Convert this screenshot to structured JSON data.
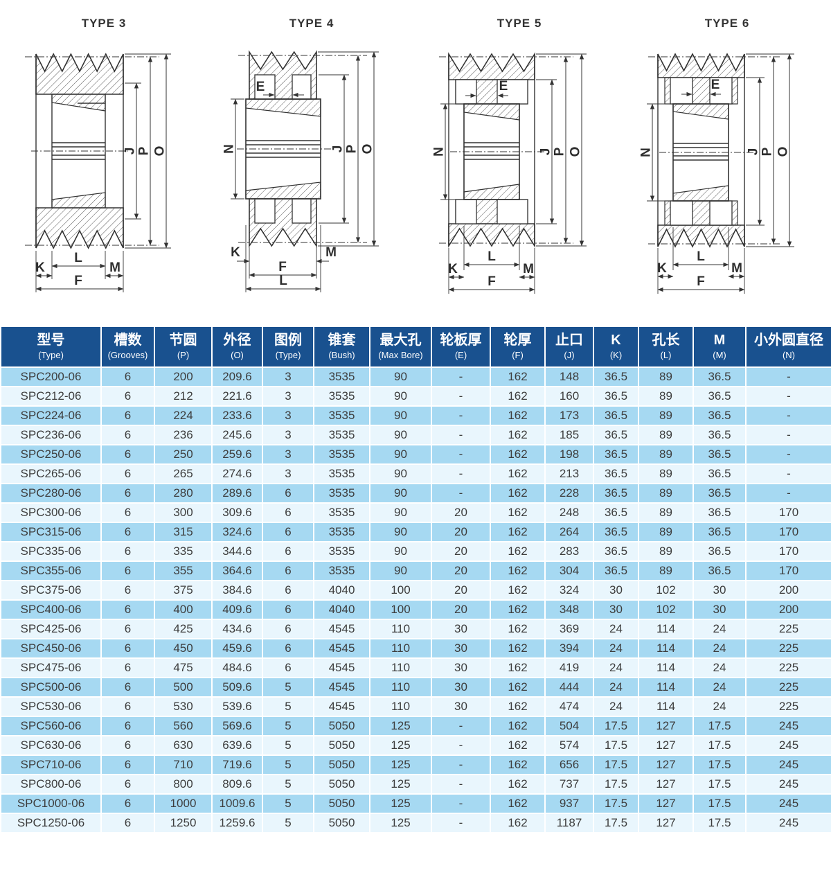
{
  "colors": {
    "header_bg": "#19518f",
    "row_blue": "#a6d9f2",
    "row_light": "#e9f6fd",
    "cell_text": "#3d3d3d",
    "drawing_line": "#333333"
  },
  "diagrams": [
    {
      "title": "TYPE 3",
      "dims": {
        "J": "J",
        "P": "P",
        "O": "O",
        "L": "L",
        "K": "K",
        "M": "M",
        "F": "F"
      }
    },
    {
      "title": "TYPE 4",
      "dims": {
        "E": "E",
        "N": "N",
        "J": "J",
        "P": "P",
        "O": "O",
        "K": "K",
        "M": "M",
        "F": "F",
        "L": "L"
      }
    },
    {
      "title": "TYPE 5",
      "dims": {
        "E": "E",
        "N": "N",
        "J": "J",
        "P": "P",
        "O": "O",
        "L": "L",
        "K": "K",
        "M": "M",
        "F": "F"
      }
    },
    {
      "title": "TYPE 6",
      "dims": {
        "E": "E",
        "N": "N",
        "J": "J",
        "P": "P",
        "O": "O",
        "L": "L",
        "K": "K",
        "M": "M",
        "F": "F"
      }
    }
  ],
  "table": {
    "columns": [
      {
        "zh": "型号",
        "en": "(Type)"
      },
      {
        "zh": "槽数",
        "en": "(Grooves)"
      },
      {
        "zh": "节圆",
        "en": "(P)"
      },
      {
        "zh": "外径",
        "en": "(O)"
      },
      {
        "zh": "图例",
        "en": "(Type)"
      },
      {
        "zh": "锥套",
        "en": "(Bush)"
      },
      {
        "zh": "最大孔",
        "en": "(Max Bore)"
      },
      {
        "zh": "轮板厚",
        "en": "(E)"
      },
      {
        "zh": "轮厚",
        "en": "(F)"
      },
      {
        "zh": "止口",
        "en": "(J)"
      },
      {
        "zh": "K",
        "en": "(K)"
      },
      {
        "zh": "孔长",
        "en": "(L)"
      },
      {
        "zh": "M",
        "en": "(M)"
      },
      {
        "zh": "小外圆直径",
        "en": "(N)"
      }
    ],
    "rows": [
      [
        "SPC200-06",
        "6",
        "200",
        "209.6",
        "3",
        "3535",
        "90",
        "-",
        "162",
        "148",
        "36.5",
        "89",
        "36.5",
        "-"
      ],
      [
        "SPC212-06",
        "6",
        "212",
        "221.6",
        "3",
        "3535",
        "90",
        "-",
        "162",
        "160",
        "36.5",
        "89",
        "36.5",
        "-"
      ],
      [
        "SPC224-06",
        "6",
        "224",
        "233.6",
        "3",
        "3535",
        "90",
        "-",
        "162",
        "173",
        "36.5",
        "89",
        "36.5",
        "-"
      ],
      [
        "SPC236-06",
        "6",
        "236",
        "245.6",
        "3",
        "3535",
        "90",
        "-",
        "162",
        "185",
        "36.5",
        "89",
        "36.5",
        "-"
      ],
      [
        "SPC250-06",
        "6",
        "250",
        "259.6",
        "3",
        "3535",
        "90",
        "-",
        "162",
        "198",
        "36.5",
        "89",
        "36.5",
        "-"
      ],
      [
        "SPC265-06",
        "6",
        "265",
        "274.6",
        "3",
        "3535",
        "90",
        "-",
        "162",
        "213",
        "36.5",
        "89",
        "36.5",
        "-"
      ],
      [
        "SPC280-06",
        "6",
        "280",
        "289.6",
        "6",
        "3535",
        "90",
        "-",
        "162",
        "228",
        "36.5",
        "89",
        "36.5",
        "-"
      ],
      [
        "SPC300-06",
        "6",
        "300",
        "309.6",
        "6",
        "3535",
        "90",
        "20",
        "162",
        "248",
        "36.5",
        "89",
        "36.5",
        "170"
      ],
      [
        "SPC315-06",
        "6",
        "315",
        "324.6",
        "6",
        "3535",
        "90",
        "20",
        "162",
        "264",
        "36.5",
        "89",
        "36.5",
        "170"
      ],
      [
        "SPC335-06",
        "6",
        "335",
        "344.6",
        "6",
        "3535",
        "90",
        "20",
        "162",
        "283",
        "36.5",
        "89",
        "36.5",
        "170"
      ],
      [
        "SPC355-06",
        "6",
        "355",
        "364.6",
        "6",
        "3535",
        "90",
        "20",
        "162",
        "304",
        "36.5",
        "89",
        "36.5",
        "170"
      ],
      [
        "SPC375-06",
        "6",
        "375",
        "384.6",
        "6",
        "4040",
        "100",
        "20",
        "162",
        "324",
        "30",
        "102",
        "30",
        "200"
      ],
      [
        "SPC400-06",
        "6",
        "400",
        "409.6",
        "6",
        "4040",
        "100",
        "20",
        "162",
        "348",
        "30",
        "102",
        "30",
        "200"
      ],
      [
        "SPC425-06",
        "6",
        "425",
        "434.6",
        "6",
        "4545",
        "110",
        "30",
        "162",
        "369",
        "24",
        "114",
        "24",
        "225"
      ],
      [
        "SPC450-06",
        "6",
        "450",
        "459.6",
        "6",
        "4545",
        "110",
        "30",
        "162",
        "394",
        "24",
        "114",
        "24",
        "225"
      ],
      [
        "SPC475-06",
        "6",
        "475",
        "484.6",
        "6",
        "4545",
        "110",
        "30",
        "162",
        "419",
        "24",
        "114",
        "24",
        "225"
      ],
      [
        "SPC500-06",
        "6",
        "500",
        "509.6",
        "5",
        "4545",
        "110",
        "30",
        "162",
        "444",
        "24",
        "114",
        "24",
        "225"
      ],
      [
        "SPC530-06",
        "6",
        "530",
        "539.6",
        "5",
        "4545",
        "110",
        "30",
        "162",
        "474",
        "24",
        "114",
        "24",
        "225"
      ],
      [
        "SPC560-06",
        "6",
        "560",
        "569.6",
        "5",
        "5050",
        "125",
        "-",
        "162",
        "504",
        "17.5",
        "127",
        "17.5",
        "245"
      ],
      [
        "SPC630-06",
        "6",
        "630",
        "639.6",
        "5",
        "5050",
        "125",
        "-",
        "162",
        "574",
        "17.5",
        "127",
        "17.5",
        "245"
      ],
      [
        "SPC710-06",
        "6",
        "710",
        "719.6",
        "5",
        "5050",
        "125",
        "-",
        "162",
        "656",
        "17.5",
        "127",
        "17.5",
        "245"
      ],
      [
        "SPC800-06",
        "6",
        "800",
        "809.6",
        "5",
        "5050",
        "125",
        "-",
        "162",
        "737",
        "17.5",
        "127",
        "17.5",
        "245"
      ],
      [
        "SPC1000-06",
        "6",
        "1000",
        "1009.6",
        "5",
        "5050",
        "125",
        "-",
        "162",
        "937",
        "17.5",
        "127",
        "17.5",
        "245"
      ],
      [
        "SPC1250-06",
        "6",
        "1250",
        "1259.6",
        "5",
        "5050",
        "125",
        "-",
        "162",
        "1187",
        "17.5",
        "127",
        "17.5",
        "245"
      ]
    ]
  }
}
